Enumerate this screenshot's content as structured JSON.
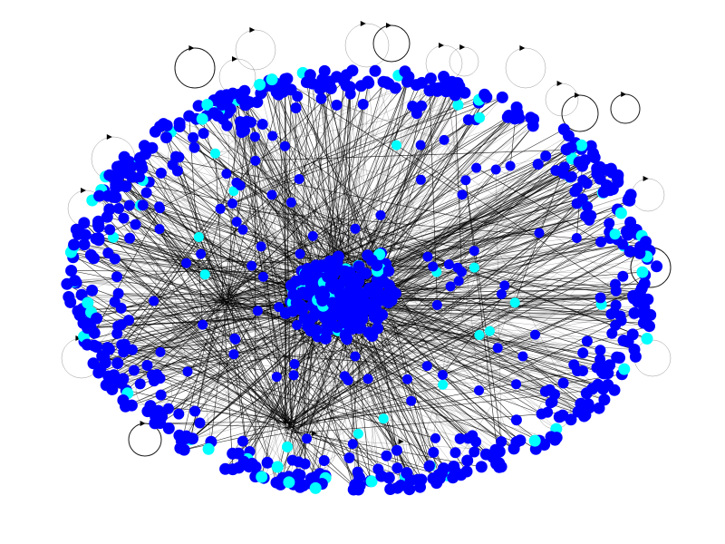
{
  "graph": {
    "directed": true,
    "node_colors": {
      "primary": "#0000ff",
      "secondary": "#00ffff"
    },
    "edge_color": "#000000",
    "background": "#ffffff",
    "node_count_ring_outer": 430,
    "node_count_ring_inner": 150,
    "node_count_core": 260,
    "node_count_scattered": 90,
    "self_loops": 22
  }
}
